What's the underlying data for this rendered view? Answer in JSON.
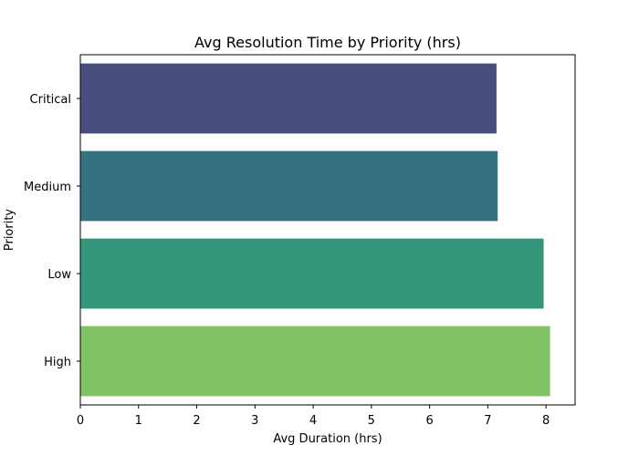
{
  "chart_data": {
    "type": "bar",
    "orientation": "horizontal",
    "title": "Avg Resolution Time by Priority (hrs)",
    "xlabel": "Avg Duration (hrs)",
    "ylabel": "Priority",
    "categories": [
      "Critical",
      "Medium",
      "Low",
      "High"
    ],
    "values": [
      7.15,
      7.17,
      7.96,
      8.07
    ],
    "colors": [
      "#4a4e7f",
      "#357281",
      "#34977c",
      "#81c264"
    ],
    "xlim": [
      0,
      8.5
    ],
    "xticks": [
      0,
      1,
      2,
      3,
      4,
      5,
      6,
      7,
      8
    ],
    "grid": false,
    "legend": "none"
  }
}
